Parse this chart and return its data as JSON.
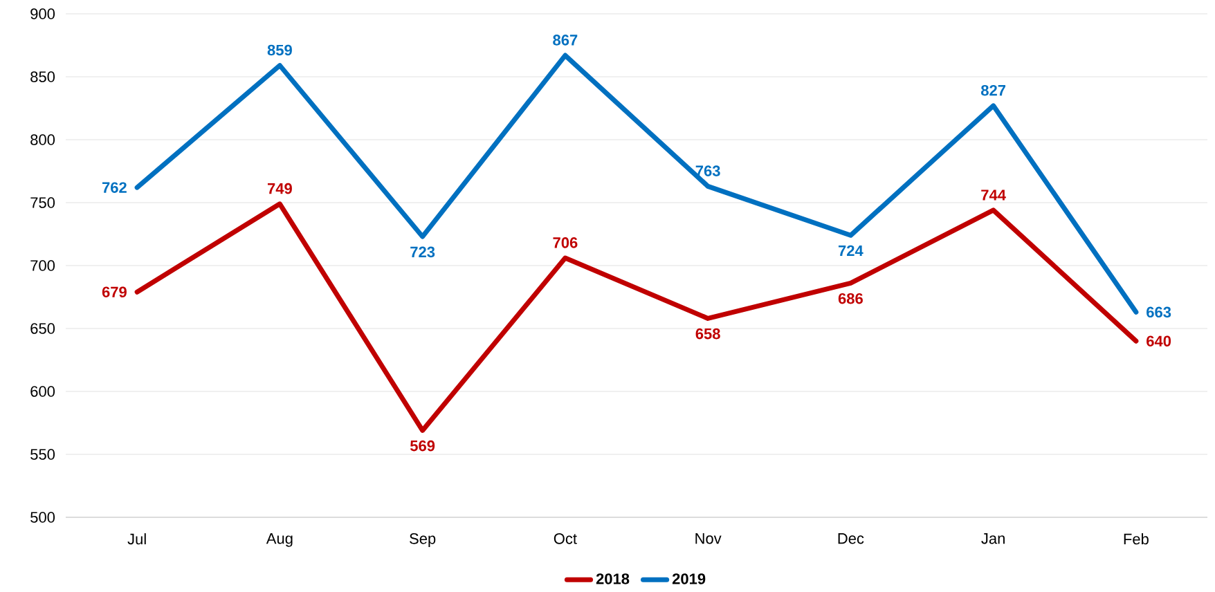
{
  "chart_data": {
    "type": "line",
    "categories": [
      "Jul",
      "Aug",
      "Sep",
      "Oct",
      "Nov",
      "Dec",
      "Jan",
      "Feb"
    ],
    "series": [
      {
        "name": "2018",
        "color": "#c00000",
        "values": [
          679,
          749,
          569,
          706,
          658,
          686,
          744,
          640
        ]
      },
      {
        "name": "2019",
        "color": "#0070c0",
        "values": [
          762,
          859,
          723,
          867,
          763,
          724,
          827,
          663
        ]
      }
    ],
    "ylim": [
      500,
      900
    ],
    "yticks": [
      500,
      550,
      600,
      650,
      700,
      750,
      800,
      850,
      900
    ],
    "grid": "y",
    "legend": "bottom",
    "data_labels": true,
    "marker": "none",
    "line_style": "solid"
  }
}
